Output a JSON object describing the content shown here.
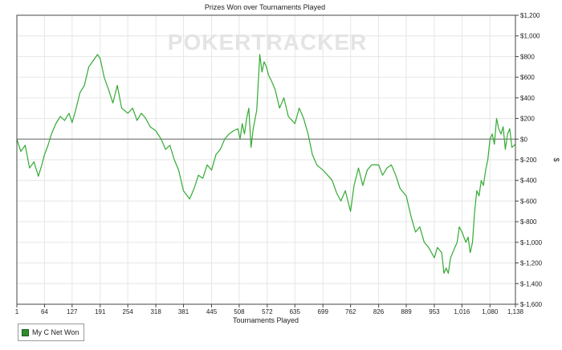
{
  "chart_data": {
    "type": "line",
    "title": "Prizes Won over Tournaments Played",
    "watermark": "POKERTRACKER",
    "xlabel": "Tournaments Played",
    "ylabel": "$",
    "xlim": [
      1,
      1138
    ],
    "ylim": [
      -1600,
      1200
    ],
    "x_ticks": [
      1,
      64,
      127,
      191,
      254,
      318,
      381,
      445,
      508,
      572,
      635,
      699,
      762,
      826,
      889,
      953,
      1016,
      1080,
      1138
    ],
    "x_tick_labels": [
      "1",
      "64",
      "127",
      "191",
      "254",
      "318",
      "381",
      "445",
      "508",
      "572",
      "635",
      "699",
      "762",
      "826",
      "889",
      "953",
      "1,016",
      "1,080",
      "1,138"
    ],
    "y_ticks": [
      1200,
      1000,
      800,
      600,
      400,
      200,
      0,
      -200,
      -400,
      -600,
      -800,
      -1000,
      -1200,
      -1400,
      -1600
    ],
    "y_tick_labels": [
      "$1,200",
      "$1,000",
      "$800",
      "$600",
      "$400",
      "$200",
      "$0",
      "$-200",
      "$-400",
      "$-600",
      "$-800",
      "$-1,000",
      "$-1,200",
      "$-1,400",
      "$-1,600"
    ],
    "grid": true,
    "legend_position": "bottom-left",
    "series": [
      {
        "name": "My C Net Won",
        "color": "#33aa33",
        "x": [
          1,
          10,
          20,
          30,
          40,
          50,
          58,
          64,
          72,
          80,
          90,
          100,
          110,
          120,
          127,
          135,
          145,
          155,
          165,
          175,
          185,
          191,
          200,
          210,
          220,
          230,
          240,
          254,
          265,
          275,
          285,
          295,
          305,
          318,
          330,
          340,
          350,
          360,
          370,
          381,
          395,
          405,
          415,
          425,
          435,
          445,
          455,
          465,
          475,
          485,
          495,
          505,
          510,
          515,
          520,
          525,
          530,
          535,
          540,
          548,
          555,
          560,
          565,
          570,
          575,
          580,
          590,
          600,
          610,
          620,
          635,
          645,
          655,
          665,
          675,
          685,
          699,
          710,
          720,
          730,
          740,
          750,
          762,
          770,
          780,
          790,
          800,
          810,
          826,
          835,
          845,
          855,
          865,
          875,
          889,
          900,
          910,
          920,
          930,
          940,
          953,
          960,
          970,
          975,
          980,
          985,
          990,
          995,
          1000,
          1005,
          1010,
          1016,
          1025,
          1030,
          1035,
          1040,
          1045,
          1050,
          1055,
          1060,
          1065,
          1070,
          1075,
          1080,
          1085,
          1090,
          1095,
          1100,
          1105,
          1110,
          1115,
          1120,
          1125,
          1130,
          1138
        ],
        "values": [
          0,
          -120,
          -60,
          -280,
          -220,
          -360,
          -250,
          -150,
          -60,
          50,
          150,
          220,
          180,
          250,
          160,
          280,
          450,
          520,
          700,
          760,
          820,
          780,
          600,
          480,
          350,
          520,
          300,
          250,
          300,
          180,
          250,
          200,
          120,
          80,
          0,
          -100,
          -60,
          -200,
          -300,
          -500,
          -580,
          -480,
          -350,
          -380,
          -250,
          -300,
          -150,
          -100,
          0,
          50,
          80,
          100,
          0,
          150,
          50,
          200,
          300,
          -80,
          100,
          280,
          820,
          650,
          750,
          700,
          620,
          580,
          480,
          300,
          400,
          220,
          150,
          300,
          200,
          50,
          -150,
          -250,
          -300,
          -350,
          -400,
          -520,
          -600,
          -500,
          -700,
          -450,
          -280,
          -450,
          -300,
          -250,
          -250,
          -350,
          -280,
          -250,
          -350,
          -480,
          -550,
          -750,
          -900,
          -850,
          -1000,
          -1050,
          -1150,
          -1050,
          -1100,
          -1300,
          -1250,
          -1300,
          -1150,
          -1100,
          -1050,
          -1000,
          -850,
          -900,
          -1000,
          -950,
          -1100,
          -1000,
          -700,
          -500,
          -550,
          -400,
          -450,
          -300,
          -200,
          0,
          50,
          -50,
          200,
          100,
          50,
          120,
          -100,
          50,
          100,
          -80,
          -50
        ]
      }
    ]
  }
}
